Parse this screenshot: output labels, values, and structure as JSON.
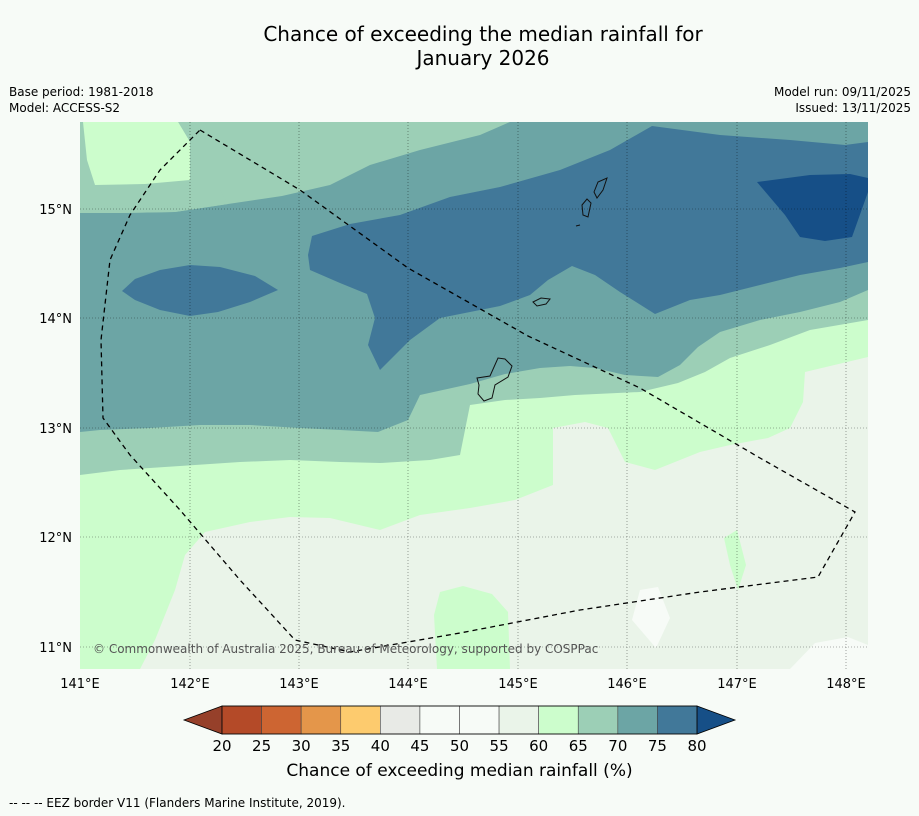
{
  "header": {
    "title_line1": "Chance of exceeding the median rainfall for",
    "title_line2": "January 2026",
    "base_period": "Base period: 1981-2018",
    "model": "Model: ACCESS-S2",
    "model_run": "Model run: 09/11/2025",
    "issued": "Issued: 13/11/2025"
  },
  "map": {
    "lon_ticks": [
      "141°E",
      "142°E",
      "143°E",
      "144°E",
      "145°E",
      "146°E",
      "147°E",
      "148°E"
    ],
    "lat_ticks": [
      "15°N",
      "14°N",
      "13°N",
      "12°N",
      "11°N"
    ],
    "copyright": "© Commonwealth of Australia 2025, Bureau of Meteorology, supported by COSPPac"
  },
  "colorbar": {
    "ticks": [
      "20",
      "25",
      "30",
      "35",
      "40",
      "45",
      "50",
      "55",
      "60",
      "65",
      "70",
      "75",
      "80"
    ],
    "colors": [
      "#b44a28",
      "#cd6532",
      "#e4964a",
      "#fdcb6e",
      "#e8eae6",
      "#f7fbf7",
      "#f7fbf7",
      "#eaf4e9",
      "#ccfdcc",
      "#9ccfb6",
      "#6ca5a5",
      "#417899"
    ],
    "under_color": "#96402a",
    "over_color": "#164f87",
    "label": "Chance of exceeding median rainfall (%)"
  },
  "legend": {
    "eez": "--  --  -- EEZ border V11 (Flanders Marine Institute, 2019)."
  }
}
